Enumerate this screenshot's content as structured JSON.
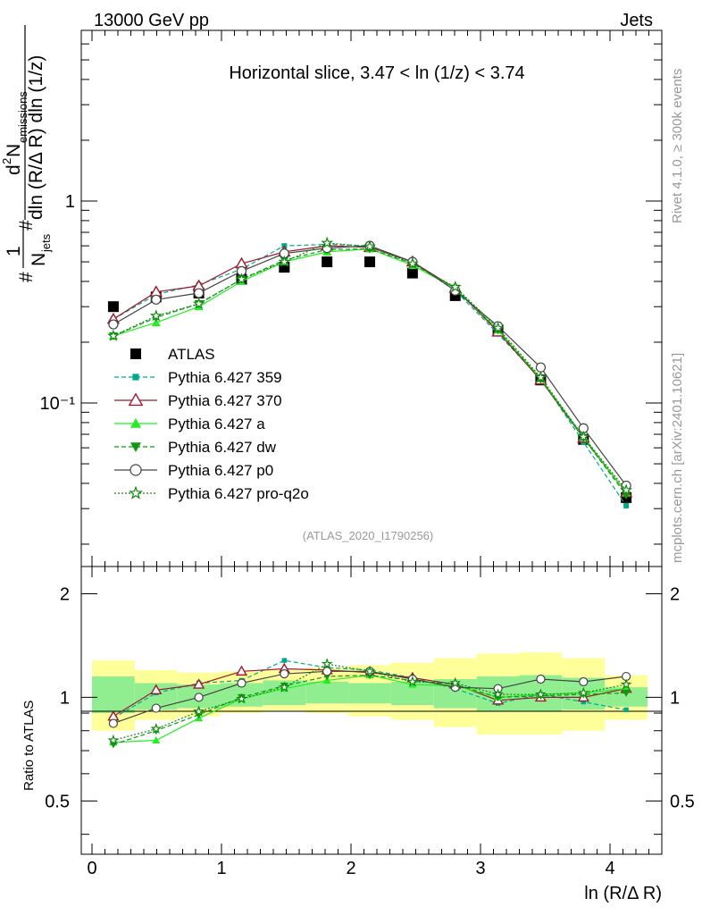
{
  "header": {
    "left": "13000 GeV pp",
    "right": "Jets",
    "slice_title": "Horizontal slice, 3.47 < ln (1/z) < 3.74",
    "rivet": "Rivet 4.1.0, ≥ 300k events",
    "mcplots": "mcplots.cern.ch [arXiv:2401.10621]",
    "analysis": "(ATLAS_2020_I1790256)"
  },
  "chart_data": {
    "type": "scatter",
    "xlabel": "ln (R/Δ R)",
    "ylabel": "1/N_jets d²N_emissions / (dln (R/Δ R) dln (1/z))",
    "ratio_ylabel": "Ratio to ATLAS",
    "xlim": [
      -0.15,
      4.42
    ],
    "ylim": [
      0.0155,
      7.0
    ],
    "ratio_ylim": [
      0.35,
      2.4
    ],
    "x_ticks": [
      "0",
      "1",
      "2",
      "3",
      "4"
    ],
    "y_ticks": [
      "1",
      "10⁻¹"
    ],
    "ratio_ticks": [
      "0.5",
      "1",
      "2"
    ],
    "x": [
      0.165,
      0.495,
      0.825,
      1.155,
      1.485,
      1.815,
      2.145,
      2.475,
      2.805,
      3.135,
      3.465,
      3.795,
      4.125
    ],
    "x_edges": [
      0,
      0.33,
      0.66,
      0.99,
      1.32,
      1.65,
      1.98,
      2.31,
      2.64,
      2.97,
      3.3,
      3.63,
      3.96,
      4.29
    ],
    "band_inner": [
      [
        0.9,
        1.15
      ],
      [
        0.92,
        1.1
      ],
      [
        0.93,
        1.09
      ],
      [
        0.94,
        1.1
      ],
      [
        0.95,
        1.12
      ],
      [
        0.96,
        1.11
      ],
      [
        0.96,
        1.1
      ],
      [
        0.95,
        1.11
      ],
      [
        0.93,
        1.13
      ],
      [
        0.91,
        1.15
      ],
      [
        0.91,
        1.16
      ],
      [
        0.92,
        1.14
      ],
      [
        0.94,
        1.07
      ]
    ],
    "band_outer": [
      [
        0.8,
        1.28
      ],
      [
        0.86,
        1.2
      ],
      [
        0.88,
        1.18
      ],
      [
        0.9,
        1.19
      ],
      [
        0.91,
        1.2
      ],
      [
        0.9,
        1.22
      ],
      [
        0.88,
        1.24
      ],
      [
        0.86,
        1.26
      ],
      [
        0.82,
        1.3
      ],
      [
        0.78,
        1.34
      ],
      [
        0.78,
        1.35
      ],
      [
        0.8,
        1.3
      ],
      [
        0.86,
        1.16
      ]
    ],
    "series": [
      {
        "name": "ATLAS",
        "color": "#000000",
        "marker": "square",
        "dash": "none",
        "values": [
          0.3,
          0.335,
          0.35,
          0.41,
          0.47,
          0.5,
          0.5,
          0.44,
          0.34,
          0.23,
          0.13,
          0.066,
          0.034
        ]
      },
      {
        "name": "Pythia 6.427 359",
        "color": "#00aa88",
        "marker": "smallsquare",
        "dash": "5,3",
        "values": [
          0.26,
          0.345,
          0.385,
          0.46,
          0.6,
          0.61,
          0.6,
          0.5,
          0.36,
          0.22,
          0.132,
          0.064,
          0.031
        ],
        "ratio": [
          0.87,
          1.03,
          1.1,
          1.12,
          1.28,
          1.22,
          1.2,
          1.14,
          1.06,
          0.96,
          1.02,
          0.97,
          0.92
        ]
      },
      {
        "name": "Pythia 6.427 370",
        "color": "#a0182e",
        "marker": "opentriangle",
        "dash": "none",
        "values": [
          0.26,
          0.355,
          0.38,
          0.49,
          0.56,
          0.6,
          0.59,
          0.5,
          0.37,
          0.225,
          0.13,
          0.067,
          0.036
        ],
        "ratio": [
          0.88,
          1.05,
          1.09,
          1.19,
          1.21,
          1.2,
          1.18,
          1.14,
          1.09,
          0.98,
          1.0,
          1.0,
          1.06
        ]
      },
      {
        "name": "Pythia 6.427 a",
        "color": "#22ee22",
        "marker": "triangle",
        "dash": "none",
        "values": [
          0.215,
          0.25,
          0.3,
          0.4,
          0.5,
          0.56,
          0.58,
          0.48,
          0.37,
          0.23,
          0.132,
          0.068,
          0.036
        ],
        "ratio": [
          0.74,
          0.75,
          0.87,
          0.99,
          1.06,
          1.12,
          1.16,
          1.09,
          1.08,
          1.0,
          1.02,
          1.03,
          1.06
        ]
      },
      {
        "name": "Pythia 6.427 dw",
        "color": "#109910",
        "marker": "downtriangle",
        "dash": "5,3",
        "values": [
          0.215,
          0.265,
          0.31,
          0.41,
          0.51,
          0.575,
          0.58,
          0.49,
          0.37,
          0.23,
          0.131,
          0.067,
          0.035
        ],
        "ratio": [
          0.73,
          0.8,
          0.89,
          1.0,
          1.08,
          1.15,
          1.16,
          1.12,
          1.09,
          1.0,
          1.01,
          1.02,
          1.03
        ]
      },
      {
        "name": "Pythia 6.427 p0",
        "color": "#444444",
        "marker": "circle",
        "dash": "none",
        "values": [
          0.245,
          0.325,
          0.35,
          0.45,
          0.55,
          0.585,
          0.6,
          0.5,
          0.36,
          0.24,
          0.15,
          0.075,
          0.039
        ],
        "ratio": [
          0.84,
          0.93,
          1.0,
          1.1,
          1.17,
          1.19,
          1.19,
          1.13,
          1.07,
          1.06,
          1.13,
          1.11,
          1.15
        ]
      },
      {
        "name": "Pythia 6.427 pro-q2o",
        "color": "#118811",
        "marker": "star",
        "dash": "2,2",
        "values": [
          0.215,
          0.27,
          0.31,
          0.41,
          0.5,
          0.62,
          0.595,
          0.49,
          0.375,
          0.235,
          0.134,
          0.068,
          0.037
        ],
        "ratio": [
          0.75,
          0.81,
          0.91,
          0.99,
          1.07,
          1.25,
          1.19,
          1.11,
          1.1,
          1.02,
          1.02,
          1.03,
          1.09
        ]
      }
    ]
  }
}
